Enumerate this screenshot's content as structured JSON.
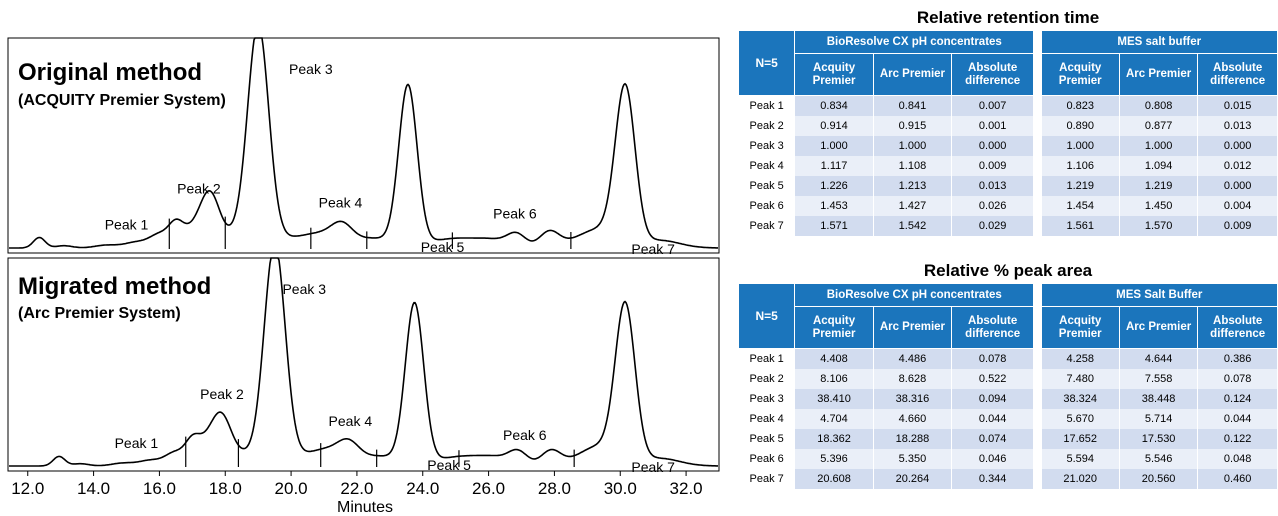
{
  "chart_data": [
    {
      "type": "line",
      "title": "Original method",
      "subtitle": "(ACQUITY Premier System)",
      "xlabel": "Minutes",
      "xlim": [
        11.4,
        33.0
      ],
      "x_ticks": [
        "12.0",
        "14.0",
        "16.0",
        "18.0",
        "20.0",
        "22.0",
        "24.0",
        "26.0",
        "28.0",
        "30.0",
        "32.0"
      ],
      "peak_labels": [
        {
          "text": "Peak 1",
          "x": 15.0
        },
        {
          "text": "Peak 2",
          "x": 17.2
        },
        {
          "text": "Peak 3",
          "x": 20.6
        },
        {
          "text": "Peak 4",
          "x": 21.5
        },
        {
          "text": "Peak 5",
          "x": 24.6
        },
        {
          "text": "Peak 6",
          "x": 26.8
        },
        {
          "text": "Peak 7",
          "x": 31.0
        }
      ],
      "peaks": [
        {
          "x": 12.35,
          "h": 0.055,
          "w": 0.18
        },
        {
          "x": 13.1,
          "h": 0.012,
          "w": 0.25
        },
        {
          "x": 14.4,
          "h": 0.015,
          "w": 0.35
        },
        {
          "x": 15.3,
          "h": 0.03,
          "w": 0.35
        },
        {
          "x": 16.0,
          "h": 0.065,
          "w": 0.3
        },
        {
          "x": 16.5,
          "h": 0.09,
          "w": 0.22
        },
        {
          "x": 17.2,
          "h": 0.12,
          "w": 0.5
        },
        {
          "x": 17.55,
          "h": 0.2,
          "w": 0.28
        },
        {
          "x": 18.3,
          "h": 0.05,
          "w": 0.35
        },
        {
          "x": 19.0,
          "h": 1.15,
          "w": 0.32
        },
        {
          "x": 20.0,
          "h": 0.05,
          "w": 0.8
        },
        {
          "x": 21.0,
          "h": 0.05,
          "w": 0.5
        },
        {
          "x": 21.55,
          "h": 0.09,
          "w": 0.32
        },
        {
          "x": 22.5,
          "h": 0.05,
          "w": 0.6
        },
        {
          "x": 23.55,
          "h": 0.84,
          "w": 0.28
        },
        {
          "x": 25.0,
          "h": 0.05,
          "w": 0.8
        },
        {
          "x": 26.2,
          "h": 0.03,
          "w": 0.5
        },
        {
          "x": 26.85,
          "h": 0.065,
          "w": 0.28
        },
        {
          "x": 27.85,
          "h": 0.085,
          "w": 0.3
        },
        {
          "x": 28.8,
          "h": 0.04,
          "w": 0.5
        },
        {
          "x": 29.5,
          "h": 0.08,
          "w": 0.5
        },
        {
          "x": 30.15,
          "h": 0.82,
          "w": 0.3
        },
        {
          "x": 31.2,
          "h": 0.04,
          "w": 0.6
        }
      ],
      "drop_lines": [
        16.3,
        18.0,
        20.6,
        22.3,
        24.9,
        28.5
      ]
    },
    {
      "type": "line",
      "title": "Migrated method",
      "subtitle": "(Arc Premier System)",
      "xlabel": "Minutes",
      "xlim": [
        11.4,
        33.0
      ],
      "x_ticks": [
        "12.0",
        "14.0",
        "16.0",
        "18.0",
        "20.0",
        "22.0",
        "24.0",
        "26.0",
        "28.0",
        "30.0",
        "32.0"
      ],
      "peak_labels": [
        {
          "text": "Peak 1",
          "x": 15.3
        },
        {
          "text": "Peak 2",
          "x": 17.9
        },
        {
          "text": "Peak 3",
          "x": 20.4
        },
        {
          "text": "Peak 4",
          "x": 21.8
        },
        {
          "text": "Peak 5",
          "x": 24.8
        },
        {
          "text": "Peak 6",
          "x": 27.1
        },
        {
          "text": "Peak 7",
          "x": 31.0
        }
      ],
      "peaks": [
        {
          "x": 12.95,
          "h": 0.05,
          "w": 0.18
        },
        {
          "x": 13.6,
          "h": 0.012,
          "w": 0.25
        },
        {
          "x": 14.9,
          "h": 0.015,
          "w": 0.35
        },
        {
          "x": 15.75,
          "h": 0.03,
          "w": 0.35
        },
        {
          "x": 16.45,
          "h": 0.06,
          "w": 0.28
        },
        {
          "x": 17.0,
          "h": 0.08,
          "w": 0.22
        },
        {
          "x": 17.45,
          "h": 0.12,
          "w": 0.45
        },
        {
          "x": 17.9,
          "h": 0.2,
          "w": 0.3
        },
        {
          "x": 18.6,
          "h": 0.05,
          "w": 0.35
        },
        {
          "x": 19.5,
          "h": 1.15,
          "w": 0.32
        },
        {
          "x": 20.5,
          "h": 0.05,
          "w": 0.8
        },
        {
          "x": 21.2,
          "h": 0.05,
          "w": 0.5
        },
        {
          "x": 21.75,
          "h": 0.085,
          "w": 0.32
        },
        {
          "x": 22.7,
          "h": 0.05,
          "w": 0.6
        },
        {
          "x": 23.75,
          "h": 0.84,
          "w": 0.28
        },
        {
          "x": 25.2,
          "h": 0.05,
          "w": 0.8
        },
        {
          "x": 26.3,
          "h": 0.03,
          "w": 0.5
        },
        {
          "x": 26.9,
          "h": 0.065,
          "w": 0.28
        },
        {
          "x": 27.9,
          "h": 0.08,
          "w": 0.3
        },
        {
          "x": 28.9,
          "h": 0.04,
          "w": 0.5
        },
        {
          "x": 29.5,
          "h": 0.08,
          "w": 0.5
        },
        {
          "x": 30.15,
          "h": 0.82,
          "w": 0.3
        },
        {
          "x": 31.2,
          "h": 0.04,
          "w": 0.6
        }
      ],
      "drop_lines": [
        16.8,
        18.4,
        20.9,
        22.6,
        25.1,
        28.6
      ]
    },
    {
      "type": "table",
      "title": "Relative retention time",
      "corner": "N=5",
      "groups": [
        "BioResolve CX pH concentrates",
        "MES salt buffer"
      ],
      "subheaders": [
        "Acquity Premier",
        "Arc Premier",
        "Absolute difference"
      ],
      "rows": [
        {
          "label": "Peak 1",
          "values": [
            "0.834",
            "0.841",
            "0.007",
            "0.823",
            "0.808",
            "0.015"
          ]
        },
        {
          "label": "Peak 2",
          "values": [
            "0.914",
            "0.915",
            "0.001",
            "0.890",
            "0.877",
            "0.013"
          ]
        },
        {
          "label": "Peak 3",
          "values": [
            "1.000",
            "1.000",
            "0.000",
            "1.000",
            "1.000",
            "0.000"
          ]
        },
        {
          "label": "Peak 4",
          "values": [
            "1.117",
            "1.108",
            "0.009",
            "1.106",
            "1.094",
            "0.012"
          ]
        },
        {
          "label": "Peak 5",
          "values": [
            "1.226",
            "1.213",
            "0.013",
            "1.219",
            "1.219",
            "0.000"
          ]
        },
        {
          "label": "Peak 6",
          "values": [
            "1.453",
            "1.427",
            "0.026",
            "1.454",
            "1.450",
            "0.004"
          ]
        },
        {
          "label": "Peak 7",
          "values": [
            "1.571",
            "1.542",
            "0.029",
            "1.561",
            "1.570",
            "0.009"
          ]
        }
      ]
    },
    {
      "type": "table",
      "title": "Relative % peak area",
      "corner": "N=5",
      "groups": [
        "BioResolve CX pH concentrates",
        "MES Salt Buffer"
      ],
      "subheaders": [
        "Acquity Premier",
        "Arc Premier",
        "Absolute difference"
      ],
      "rows": [
        {
          "label": "Peak 1",
          "values": [
            "4.408",
            "4.486",
            "0.078",
            "4.258",
            "4.644",
            "0.386"
          ]
        },
        {
          "label": "Peak 2",
          "values": [
            "8.106",
            "8.628",
            "0.522",
            "7.480",
            "7.558",
            "0.078"
          ]
        },
        {
          "label": "Peak 3",
          "values": [
            "38.410",
            "38.316",
            "0.094",
            "38.324",
            "38.448",
            "0.124"
          ]
        },
        {
          "label": "Peak 4",
          "values": [
            "4.704",
            "4.660",
            "0.044",
            "5.670",
            "5.714",
            "0.044"
          ]
        },
        {
          "label": "Peak 5",
          "values": [
            "18.362",
            "18.288",
            "0.074",
            "17.652",
            "17.530",
            "0.122"
          ]
        },
        {
          "label": "Peak 6",
          "values": [
            "5.396",
            "5.350",
            "0.046",
            "5.594",
            "5.546",
            "0.048"
          ]
        },
        {
          "label": "Peak 7",
          "values": [
            "20.608",
            "20.264",
            "0.344",
            "21.020",
            "20.560",
            "0.460"
          ]
        }
      ]
    }
  ],
  "colors": {
    "header": "#1b75bc",
    "row_odd": "#d2dcef",
    "row_even": "#eaeff8",
    "trace": "#000000"
  }
}
